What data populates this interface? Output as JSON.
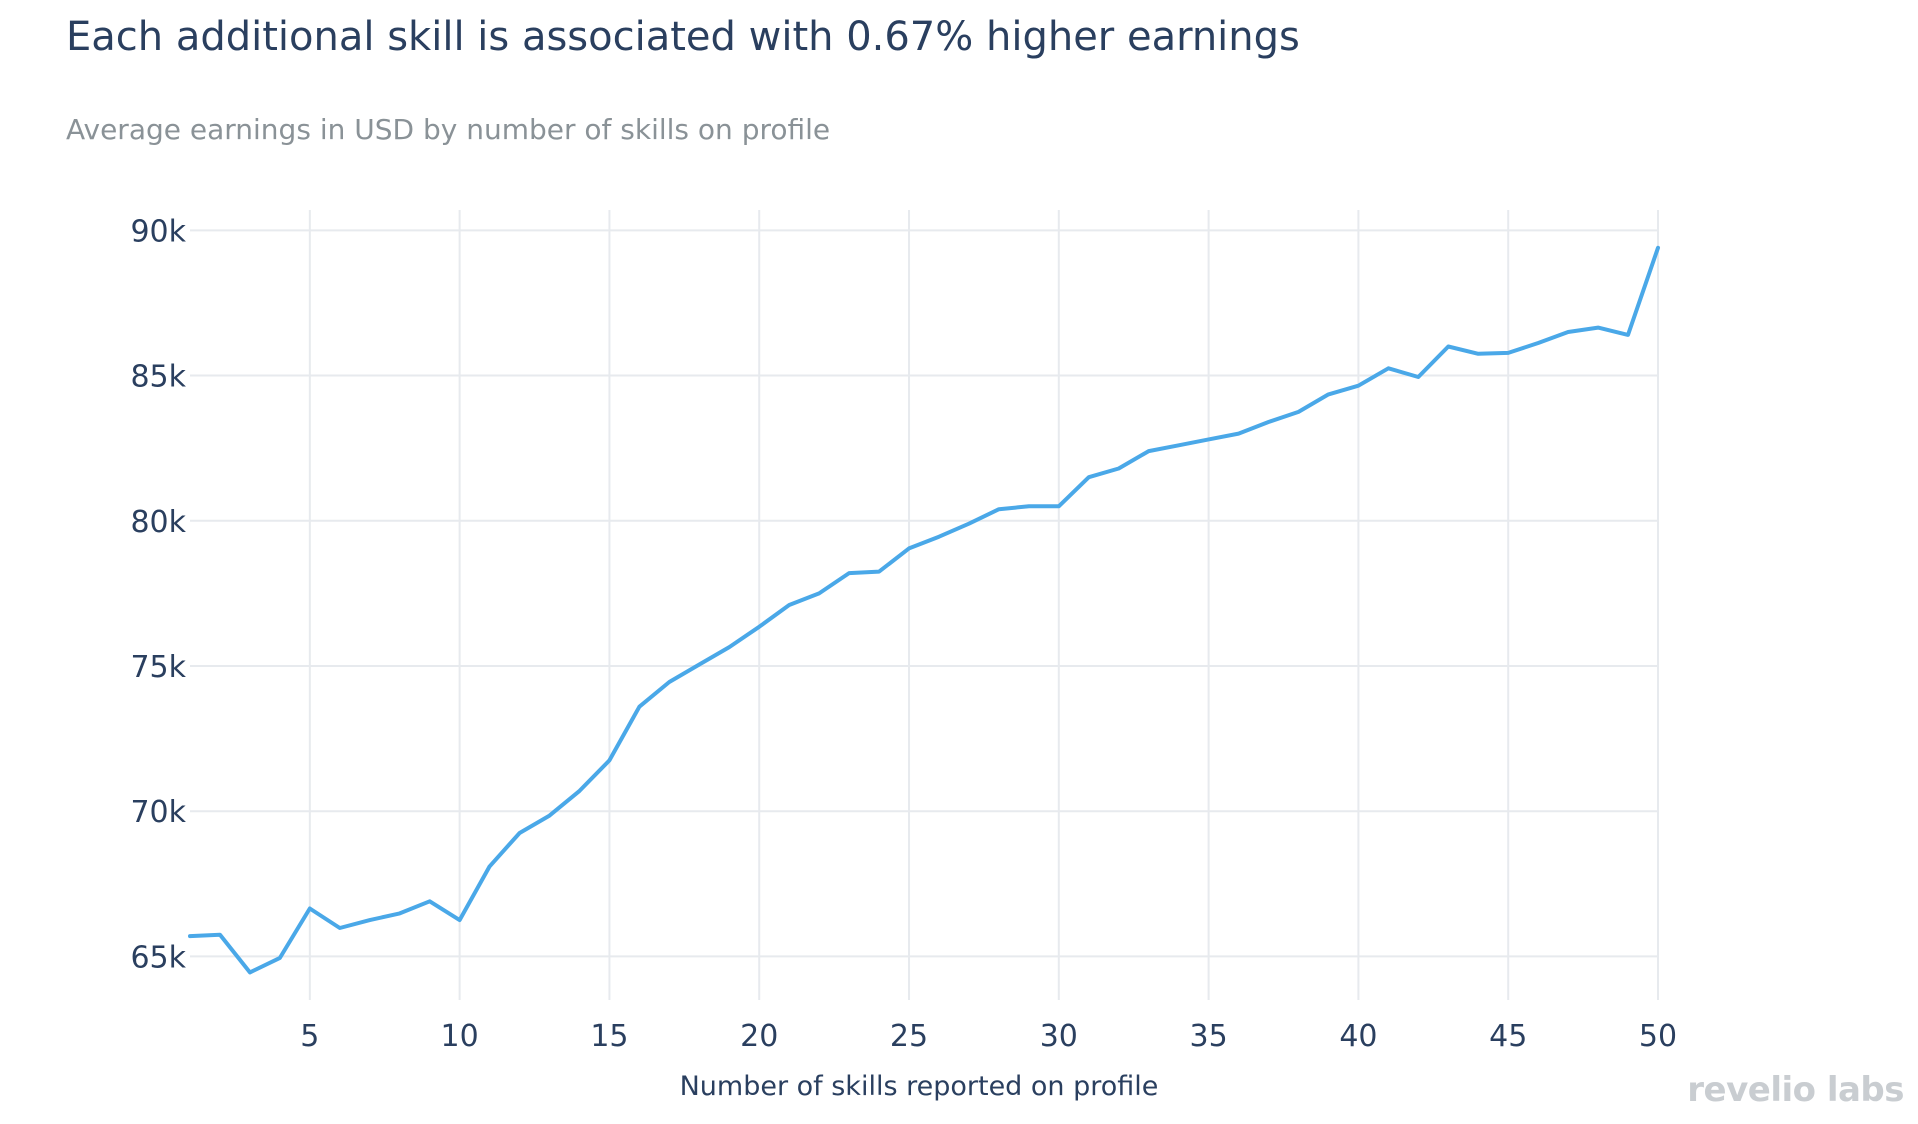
{
  "chart_data": {
    "type": "line",
    "title": "Each additional skill is associated with 0.67% higher earnings",
    "subtitle": "Average earnings in USD by number of skills on profile",
    "xlabel": "Number of skills reported on profile",
    "ylabel": "",
    "xlim": [
      1,
      50
    ],
    "ylim": [
      63500,
      90700
    ],
    "x_ticks": [
      5,
      10,
      15,
      20,
      25,
      30,
      35,
      40,
      45,
      50
    ],
    "y_ticks": [
      65000,
      70000,
      75000,
      80000,
      85000,
      90000
    ],
    "y_tick_labels": [
      "65k",
      "70k",
      "75k",
      "80k",
      "85k",
      "90k"
    ],
    "grid": true,
    "series": [
      {
        "name": "Average earnings",
        "color": "#4aa8e8",
        "x": [
          1,
          2,
          3,
          4,
          5,
          6,
          7,
          8,
          9,
          10,
          11,
          12,
          13,
          14,
          15,
          16,
          17,
          18,
          19,
          20,
          21,
          22,
          23,
          24,
          25,
          26,
          27,
          28,
          29,
          30,
          31,
          32,
          33,
          34,
          35,
          36,
          37,
          38,
          39,
          40,
          41,
          42,
          43,
          44,
          45,
          46,
          47,
          48,
          49,
          50
        ],
        "values": [
          65700,
          65750,
          64450,
          64950,
          66650,
          65980,
          66250,
          66480,
          66900,
          66250,
          68100,
          69250,
          69850,
          70700,
          71750,
          73600,
          74450,
          75050,
          75650,
          76350,
          77100,
          77500,
          78200,
          78250,
          79050,
          79450,
          79900,
          80400,
          80500,
          80500,
          81500,
          81800,
          82400,
          82600,
          82800,
          83000,
          83400,
          83750,
          84350,
          84650,
          85250,
          84950,
          86000,
          85750,
          85780,
          86120,
          86500,
          86650,
          86400,
          89400
        ]
      }
    ]
  },
  "branding": {
    "logo_text": "revelio labs"
  }
}
